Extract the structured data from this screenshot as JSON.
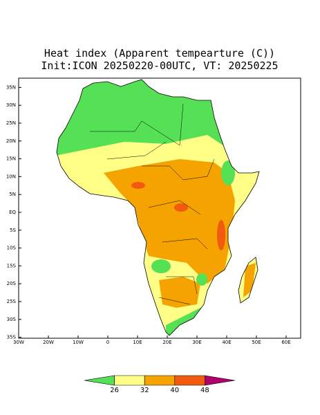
{
  "title": "Heat index (Apparent tempearture (C))",
  "subtitle": "Init:ICON 20250220-00UTC, VT: 20250225",
  "map": {
    "lat_ticks": [
      {
        "value": 35,
        "label": "35N"
      },
      {
        "value": 30,
        "label": "30N"
      },
      {
        "value": 25,
        "label": "25N"
      },
      {
        "value": 20,
        "label": "20N"
      },
      {
        "value": 15,
        "label": "15N"
      },
      {
        "value": 10,
        "label": "10N"
      },
      {
        "value": 5,
        "label": "5N"
      },
      {
        "value": 0,
        "label": "EQ"
      },
      {
        "value": -5,
        "label": "5S"
      },
      {
        "value": -10,
        "label": "10S"
      },
      {
        "value": -15,
        "label": "15S"
      },
      {
        "value": -20,
        "label": "20S"
      },
      {
        "value": -25,
        "label": "25S"
      },
      {
        "value": -30,
        "label": "30S"
      },
      {
        "value": -35,
        "label": "35S"
      }
    ],
    "lon_ticks": [
      {
        "value": -30,
        "label": "30W"
      },
      {
        "value": -20,
        "label": "20W"
      },
      {
        "value": -10,
        "label": "10W"
      },
      0,
      {
        "value": 10,
        "label": "10E"
      },
      {
        "value": 20,
        "label": "20E"
      },
      {
        "value": 30,
        "label": "30E"
      },
      {
        "value": 40,
        "label": "40E"
      },
      {
        "value": 50,
        "label": "50E"
      },
      {
        "value": 60,
        "label": "60E"
      }
    ]
  },
  "colorbar": {
    "levels": [
      26,
      32,
      40,
      48
    ],
    "colors": [
      "#55e055",
      "#ffff88",
      "#f5a300",
      "#f25a10",
      "#b0006a"
    ]
  }
}
